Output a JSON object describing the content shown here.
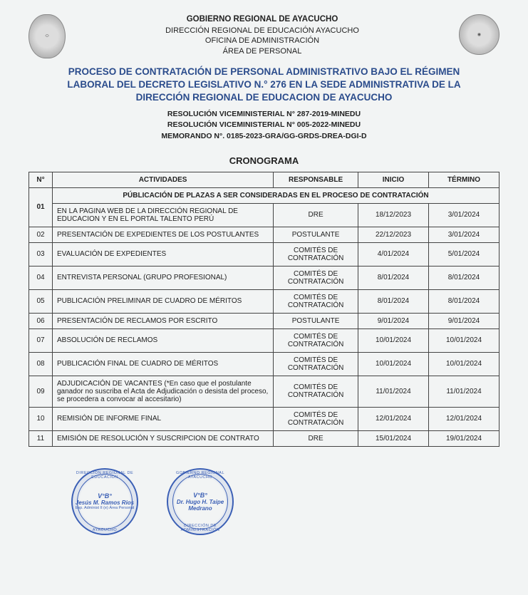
{
  "org": {
    "line1": "GOBIERNO REGIONAL DE AYACUCHO",
    "line2": "DIRECCIÓN REGIONAL DE EDUCACIÓN AYACUCHO",
    "line3": "OFICINA DE ADMINISTRACIÓN",
    "line4": "ÁREA DE PERSONAL"
  },
  "title": {
    "line1": "PROCESO DE CONTRATACIÓN DE PERSONAL ADMINISTRATIVO BAJO EL RÉGIMEN",
    "line2": "LABORAL DEL DECRETO LEGISLATIVO N.° 276 EN LA SEDE ADMINISTRATIVA DE LA",
    "line3": "DIRECCIÓN REGIONAL DE EDUCACION DE AYACUCHO"
  },
  "resolutions": {
    "r1": "RESOLUCIÓN VICEMINISTERIAL N° 287-2019-MINEDU",
    "r2": "RESOLUCIÓN VICEMINISTERIAL N° 005-2022-MINEDU",
    "r3": "MEMORANDO N°. 0185-2023-GRA/GG-GRDS-DREA-DGI-D"
  },
  "cronograma_label": "CRONOGRAMA",
  "table": {
    "headers": {
      "num": "N°",
      "actividades": "ACTIVIDADES",
      "responsable": "RESPONSABLE",
      "inicio": "INICIO",
      "termino": "TÉRMINO"
    },
    "section_header": "PÚBLICACIÓN DE PLAZAS A SER CONSIDERADAS EN EL PROCESO DE CONTRATACIÓN",
    "rows": [
      {
        "n": "01",
        "act": "EN LA PAGINA WEB DE LA DIRECCIÓN REGIONAL DE EDUCACION Y EN EL PORTAL TALENTO PERÚ",
        "resp": "DRE",
        "ini": "18/12/2023",
        "fin": "3/01/2024"
      },
      {
        "n": "02",
        "act": "PRESENTACIÓN DE EXPEDIENTES DE LOS POSTULANTES",
        "resp": "POSTULANTE",
        "ini": "22/12/2023",
        "fin": "3/01/2024"
      },
      {
        "n": "03",
        "act": "EVALUACIÓN DE EXPEDIENTES",
        "resp": "COMITÉS DE CONTRATACIÓN",
        "ini": "4/01/2024",
        "fin": "5/01/2024"
      },
      {
        "n": "04",
        "act": "ENTREVISTA PERSONAL (GRUPO PROFESIONAL)",
        "resp": "COMITÉS DE CONTRATACIÓN",
        "ini": "8/01/2024",
        "fin": "8/01/2024"
      },
      {
        "n": "05",
        "act": "PUBLICACIÓN PRELIMINAR DE CUADRO DE MÉRITOS",
        "resp": "COMITÉS DE CONTRATACIÓN",
        "ini": "8/01/2024",
        "fin": "8/01/2024"
      },
      {
        "n": "06",
        "act": "PRESENTACIÓN DE RECLAMOS POR ESCRITO",
        "resp": "POSTULANTE",
        "ini": "9/01/2024",
        "fin": "9/01/2024"
      },
      {
        "n": "07",
        "act": "ABSOLUCIÓN DE RECLAMOS",
        "resp": "COMITÉS DE CONTRATACIÓN",
        "ini": "10/01/2024",
        "fin": "10/01/2024"
      },
      {
        "n": "08",
        "act": "PUBLICACIÓN FINAL DE CUADRO DE MÉRITOS",
        "resp": "COMITÉS DE CONTRATACIÓN",
        "ini": "10/01/2024",
        "fin": "10/01/2024"
      },
      {
        "n": "09",
        "act": "ADJUDICACIÓN DE VACANTES (*En caso que el postulante ganador no suscriba el Acta de Adjudicación o desista del proceso, se procedera a convocar al accesitario)",
        "resp": "COMITÉS DE CONTRATACIÓN",
        "ini": "11/01/2024",
        "fin": "11/01/2024"
      },
      {
        "n": "10",
        "act": "REMISIÓN DE INFORME FINAL",
        "resp": "COMITÉS DE CONTRATACIÓN",
        "ini": "12/01/2024",
        "fin": "12/01/2024"
      },
      {
        "n": "11",
        "act": "EMISIÓN DE RESOLUCIÓN Y SUSCRIPCION DE CONTRATO",
        "resp": "DRE",
        "ini": "15/01/2024",
        "fin": "19/01/2024"
      }
    ]
  },
  "stamps": {
    "s1": {
      "outer_top": "DIRECCIÓN REGIONAL DE EDUCACIÓN",
      "vb": "V°B°",
      "name": "Jesús M.\nRamos Rios",
      "sub": "Esp. Administ II (e)\nÁrea Personal",
      "outer_bottom": "AYACUCHO"
    },
    "s2": {
      "outer_top": "GOBIERNO REGIONAL AYACUCHO",
      "vb": "V°B°",
      "name": "Dr. Hugo H.\nTaipe Medrano",
      "sub": "",
      "outer_bottom": "DIRECCIÓN DE ADMINISTRACIÓN"
    }
  }
}
